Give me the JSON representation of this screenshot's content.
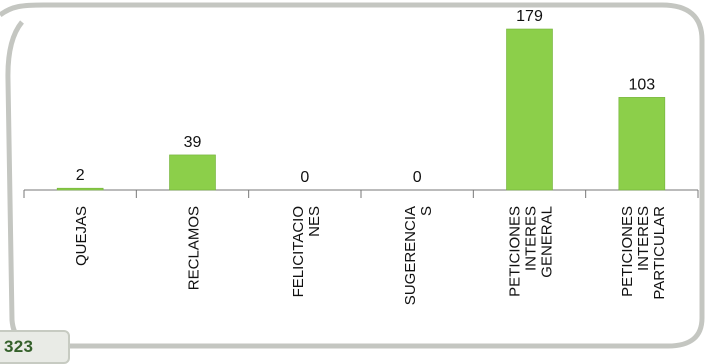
{
  "total": "323",
  "colors": {
    "bar": "#8ccf4a",
    "bar_edge": "#72b03a",
    "frame": "#c4c6c1",
    "axis": "#777777",
    "text": "#111111"
  },
  "chart_data": {
    "type": "bar",
    "categories": [
      [
        "QUEJAS"
      ],
      [
        "RECLAMOS"
      ],
      [
        "FELICITACIO",
        "NES"
      ],
      [
        "SUGERENCIA",
        "S"
      ],
      [
        "PETICIONES",
        "INTERES",
        "GENERAL"
      ],
      [
        "PETICIONES",
        "INTERES",
        "PARTICULAR"
      ]
    ],
    "values": [
      2,
      39,
      0,
      0,
      179,
      103
    ],
    "data_labels": [
      "2",
      "39",
      "0",
      "0",
      "179",
      "103"
    ],
    "title": "",
    "xlabel": "",
    "ylabel": "",
    "ylim": [
      0,
      179
    ],
    "grid": false,
    "legend": "none"
  }
}
